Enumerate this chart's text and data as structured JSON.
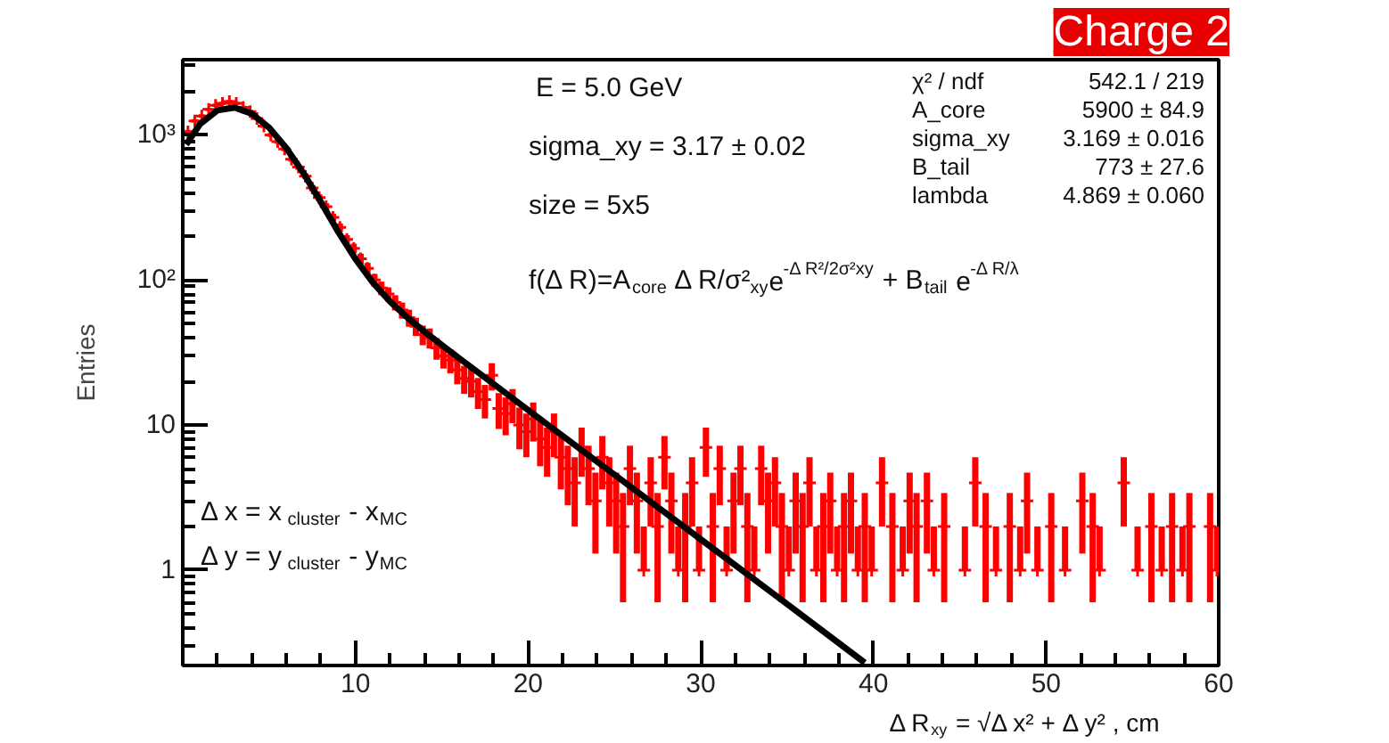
{
  "chart_data": {
    "type": "scatter",
    "xlabel": "Δ R$_{xy}$ = √Δ x² + Δ y² , cm",
    "ylabel": "Entries",
    "xlim": [
      0,
      60
    ],
    "xticks": [
      {
        "value": 0,
        "label": null
      },
      10,
      20,
      30,
      40,
      50,
      60
    ],
    "ylim": [
      0.22,
      3300
    ],
    "yticks": [
      1,
      10,
      {
        "value": 100,
        "label": "10²"
      },
      {
        "value": 1000,
        "label": "10³"
      }
    ],
    "log": "y",
    "grid": false,
    "annotations": [
      "E = 5.0 GeV",
      "sigma_xy = 3.17 ± 0.02",
      "size = 5x5",
      "f(Δ R)=A$_{core}$ Δ R/σ²$_{xy}$e$^{-Δ R²/2σ²xy}$ + B$_{tail}$ e$^{-Δ R/λ}$",
      "Δ x = x$_{cluster}$ - x$_{MC}$",
      "Δ y = y$_{cluster}$ - y$_{MC}$",
      "χ² / ndf",
      "542.1 / 219",
      "A_core",
      "5900 ± 84.9",
      "sigma_xy",
      "3.169 ± 0.016",
      "B_tail",
      "773 ± 27.6",
      "lambda",
      "4.869 ± 0.060",
      "Charge 2"
    ],
    "series": [
      {
        "color": "#ff0000",
        "marker": "cross",
        "x": [
          0.3,
          0.7,
          1.1,
          1.5,
          1.9,
          2.3,
          2.7,
          3.1,
          3.5,
          3.9,
          4.3,
          4.7,
          5.1,
          5.5,
          5.9,
          6.3,
          6.7,
          7.1,
          7.5,
          7.9,
          8.3,
          8.7,
          9.1,
          9.5,
          9.9,
          10.3,
          10.7,
          11.1,
          11.5,
          11.9,
          12.3,
          12.7,
          13.1,
          13.5,
          13.9,
          14.3,
          14.7,
          15.1,
          15.5,
          15.9,
          16.3,
          16.7,
          17.1,
          17.5,
          17.9,
          18.3,
          18.7,
          19.1,
          19.5,
          19.9,
          20.3,
          20.7,
          21.1,
          21.5,
          21.9,
          22.3,
          22.7,
          23.1,
          23.5,
          23.9,
          24.3,
          24.7,
          25.1,
          25.5,
          25.9,
          26.3,
          26.7,
          27.1,
          27.5,
          27.9,
          28.3,
          28.7,
          29.1,
          29.5,
          29.9,
          30.3,
          30.7,
          31.1,
          31.5,
          31.9,
          32.3,
          32.7,
          33.1,
          33.5,
          33.9,
          34.3,
          34.7,
          35.1,
          35.5,
          35.9,
          36.3,
          36.7,
          37.1,
          37.5,
          37.9,
          38.3,
          38.7,
          39.1,
          39.5,
          39.9,
          40.5,
          41.1,
          41.7,
          42.1,
          42.5,
          43.1,
          43.5,
          44.1,
          45.3,
          45.9,
          46.5,
          47.1,
          47.9,
          48.5,
          48.9,
          49.5,
          50.3,
          51.1,
          52.1,
          52.7,
          53.1,
          54.5,
          55.3,
          56.1,
          56.7,
          57.3,
          57.9,
          58.3,
          59.5,
          59.9
        ],
        "values": [
          1050,
          1250,
          1350,
          1500,
          1600,
          1650,
          1700,
          1650,
          1550,
          1450,
          1300,
          1150,
          1000,
          900,
          800,
          680,
          600,
          520,
          430,
          370,
          320,
          270,
          230,
          190,
          165,
          140,
          120,
          100,
          88,
          80,
          70,
          62,
          55,
          48,
          42,
          40,
          34,
          30,
          28,
          24,
          21,
          20,
          17,
          15,
          22,
          13,
          12,
          14,
          10,
          9,
          11,
          8,
          7,
          9,
          6,
          5,
          4,
          7,
          5,
          3,
          6,
          4,
          3,
          2,
          5,
          3,
          1,
          4,
          2,
          6,
          3,
          1,
          2,
          4,
          1,
          7,
          2,
          5,
          1,
          3,
          5,
          2,
          1,
          5,
          3,
          4,
          2,
          1,
          3,
          2,
          4,
          1,
          2,
          3,
          1,
          2,
          3,
          1,
          2,
          1,
          4,
          2,
          1,
          3,
          2,
          3,
          1,
          2,
          1,
          4,
          2,
          1,
          2,
          1,
          3,
          1,
          2,
          1,
          3,
          2,
          1,
          4,
          1,
          2,
          1,
          2,
          1,
          2,
          2,
          1
        ],
        "errors": [
          32.4,
          35.4,
          36.7,
          38.7,
          40,
          40.6,
          41.2,
          40.6,
          39.4,
          38.1,
          36.1,
          33.9,
          31.6,
          30,
          28.3,
          26.1,
          24.5,
          22.8,
          20.7,
          19.2,
          17.9,
          16.4,
          15.2,
          13.8,
          12.8,
          11.8,
          11,
          10,
          9.4,
          8.9,
          8.4,
          7.9,
          7.4,
          6.9,
          6.5,
          6.3,
          5.8,
          5.5,
          5.3,
          4.9,
          4.6,
          4.5,
          4.1,
          3.9,
          4.7,
          3.6,
          3.5,
          3.7,
          3.2,
          3,
          3.3,
          2.8,
          2.6,
          3,
          2.4,
          2.2,
          2,
          2.6,
          2.2,
          1.7,
          2.4,
          2,
          1.7,
          1.4,
          2.2,
          1.7,
          1,
          2,
          1.4,
          2.4,
          1.7,
          1,
          1.4,
          2,
          1,
          2.6,
          1.4,
          2.2,
          1,
          1.7,
          2.2,
          1.4,
          1,
          2.2,
          1.7,
          2,
          1.4,
          1,
          1.7,
          1.4,
          2,
          1,
          1.4,
          1.7,
          1,
          1.4,
          1.7,
          1,
          1.4,
          1,
          2,
          1.4,
          1,
          1.7,
          1.4,
          1.7,
          1,
          1.4,
          1,
          2,
          1.4,
          1,
          1.4,
          1,
          1.7,
          1,
          1.4,
          1,
          1.7,
          1.4,
          1,
          2,
          1,
          1.4,
          1,
          1.4,
          1,
          1.4,
          1.4,
          1
        ]
      },
      {
        "type": "line",
        "color": "#000000",
        "line_style": "solid",
        "x": [
          0.2,
          1,
          2,
          3,
          4,
          5,
          6,
          7,
          8,
          9,
          10,
          11,
          12,
          13,
          14,
          16,
          18,
          20,
          25,
          30,
          35,
          39.5
        ],
        "values": [
          859,
          1188,
          1476,
          1543,
          1400,
          1123,
          812,
          543,
          344,
          215,
          139.5,
          96.3,
          71.1,
          55.2,
          44.0,
          28.9,
          19.2,
          12.7,
          4.55,
          1.63,
          0.584,
          0.23
        ]
      }
    ]
  }
}
